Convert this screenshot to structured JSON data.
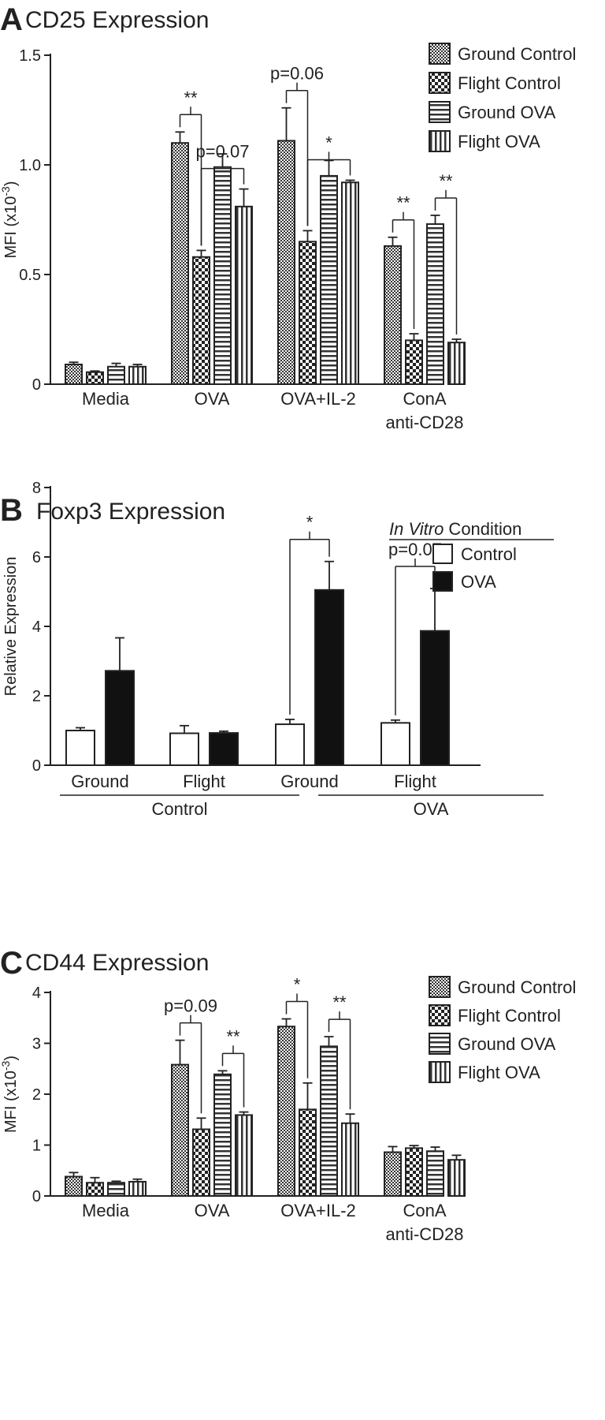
{
  "figure": {
    "panels": [
      {
        "letter": "A",
        "title": "CD25 Expression"
      },
      {
        "letter": "B",
        "title": "Foxp3 Expression"
      },
      {
        "letter": "C",
        "title": "CD44 Expression"
      }
    ]
  },
  "chart_data": [
    {
      "panel": "A",
      "type": "bar",
      "title": "CD25 Expression",
      "ylabel": "MFI (x10^-3)",
      "ylim": [
        0,
        1.5
      ],
      "yticks": [
        0,
        0.5,
        1.0,
        1.5
      ],
      "ytick_labels": [
        "0",
        "0.5",
        "1.0",
        "1.5"
      ],
      "categories": [
        "Media",
        "OVA",
        "OVA+IL-2",
        "ConA anti-CD28"
      ],
      "grid": false,
      "legend_position": "top-right",
      "series": [
        {
          "name": "Ground Control",
          "pattern": "dense-check",
          "values": [
            0.09,
            1.1,
            1.11,
            0.63
          ],
          "errors": [
            0.01,
            0.05,
            0.15,
            0.04
          ]
        },
        {
          "name": "Flight Control",
          "pattern": "checker",
          "values": [
            0.055,
            0.58,
            0.65,
            0.2
          ],
          "errors": [
            0.005,
            0.03,
            0.05,
            0.03
          ]
        },
        {
          "name": "Ground OVA",
          "pattern": "horizontal-lines",
          "values": [
            0.08,
            0.99,
            0.95,
            0.73
          ],
          "errors": [
            0.015,
            0.06,
            0.07,
            0.04
          ]
        },
        {
          "name": "Flight OVA",
          "pattern": "vertical-lines",
          "values": [
            0.08,
            0.81,
            0.92,
            0.19
          ],
          "errors": [
            0.01,
            0.08,
            0.01,
            0.015
          ]
        }
      ],
      "annotations": [
        {
          "label": "**",
          "category": 1,
          "from": 0,
          "to": 1
        },
        {
          "label": "p=0.07",
          "category": 1,
          "from": 1,
          "to": 3
        },
        {
          "label": "p=0.06",
          "category": 2,
          "from": 0,
          "to": 1
        },
        {
          "label": "*",
          "category": 2,
          "from": 1,
          "to": 3
        },
        {
          "label": "**",
          "category": 3,
          "from": 0,
          "to": 1
        },
        {
          "label": "**",
          "category": 3,
          "from": 2,
          "to": 3
        }
      ]
    },
    {
      "panel": "B",
      "type": "bar",
      "title": "Foxp3 Expression",
      "ylabel": "Relative Expression",
      "ylim": [
        0,
        8
      ],
      "yticks": [
        0,
        2,
        4,
        6,
        8
      ],
      "ytick_labels": [
        "0",
        "2",
        "4",
        "6",
        "8"
      ],
      "categories": [
        "Ground",
        "Flight",
        "Ground",
        "Flight"
      ],
      "groups": [
        "Control",
        "OVA"
      ],
      "grid": false,
      "legend_position": "top-right",
      "legend_title_italic": "In Vitro",
      "legend_title_rest": " Condition",
      "series": [
        {
          "name": "Control",
          "color": "#ffffff",
          "values": [
            1.0,
            0.92,
            1.18,
            1.22
          ],
          "errors": [
            0.08,
            0.22,
            0.14,
            0.08
          ]
        },
        {
          "name": "OVA",
          "color": "#111111",
          "values": [
            2.72,
            0.93,
            5.05,
            3.87
          ],
          "errors": [
            0.95,
            0.05,
            0.82,
            1.22
          ]
        }
      ],
      "annotations": [
        {
          "label": "*",
          "category": 2
        },
        {
          "label": "p=0.07",
          "category": 3
        }
      ]
    },
    {
      "panel": "C",
      "type": "bar",
      "title": "CD44 Expression",
      "ylabel": "MFI (x10^-3)",
      "ylim": [
        0,
        4
      ],
      "yticks": [
        0,
        1,
        2,
        3,
        4
      ],
      "ytick_labels": [
        "0",
        "1",
        "2",
        "3",
        "4"
      ],
      "categories": [
        "Media",
        "OVA",
        "OVA+IL-2",
        "ConA anti-CD28"
      ],
      "grid": false,
      "legend_position": "top-right",
      "series": [
        {
          "name": "Ground Control",
          "pattern": "dense-check",
          "values": [
            0.38,
            2.58,
            3.33,
            0.86
          ],
          "errors": [
            0.08,
            0.48,
            0.15,
            0.11
          ]
        },
        {
          "name": "Flight Control",
          "pattern": "checker",
          "values": [
            0.26,
            1.31,
            1.7,
            0.94
          ],
          "errors": [
            0.1,
            0.22,
            0.52,
            0.05
          ]
        },
        {
          "name": "Ground OVA",
          "pattern": "horizontal-lines",
          "values": [
            0.26,
            2.39,
            2.94,
            0.88
          ],
          "errors": [
            0.03,
            0.07,
            0.19,
            0.08
          ]
        },
        {
          "name": "Flight OVA",
          "pattern": "vertical-lines",
          "values": [
            0.28,
            1.59,
            1.43,
            0.71
          ],
          "errors": [
            0.05,
            0.06,
            0.18,
            0.09
          ]
        }
      ],
      "annotations": [
        {
          "label": "p=0.09",
          "category": 1,
          "from": 0,
          "to": 1
        },
        {
          "label": "**",
          "category": 1,
          "from": 2,
          "to": 3
        },
        {
          "label": "*",
          "category": 2,
          "from": 0,
          "to": 1
        },
        {
          "label": "**",
          "category": 2,
          "from": 2,
          "to": 3
        }
      ]
    }
  ]
}
